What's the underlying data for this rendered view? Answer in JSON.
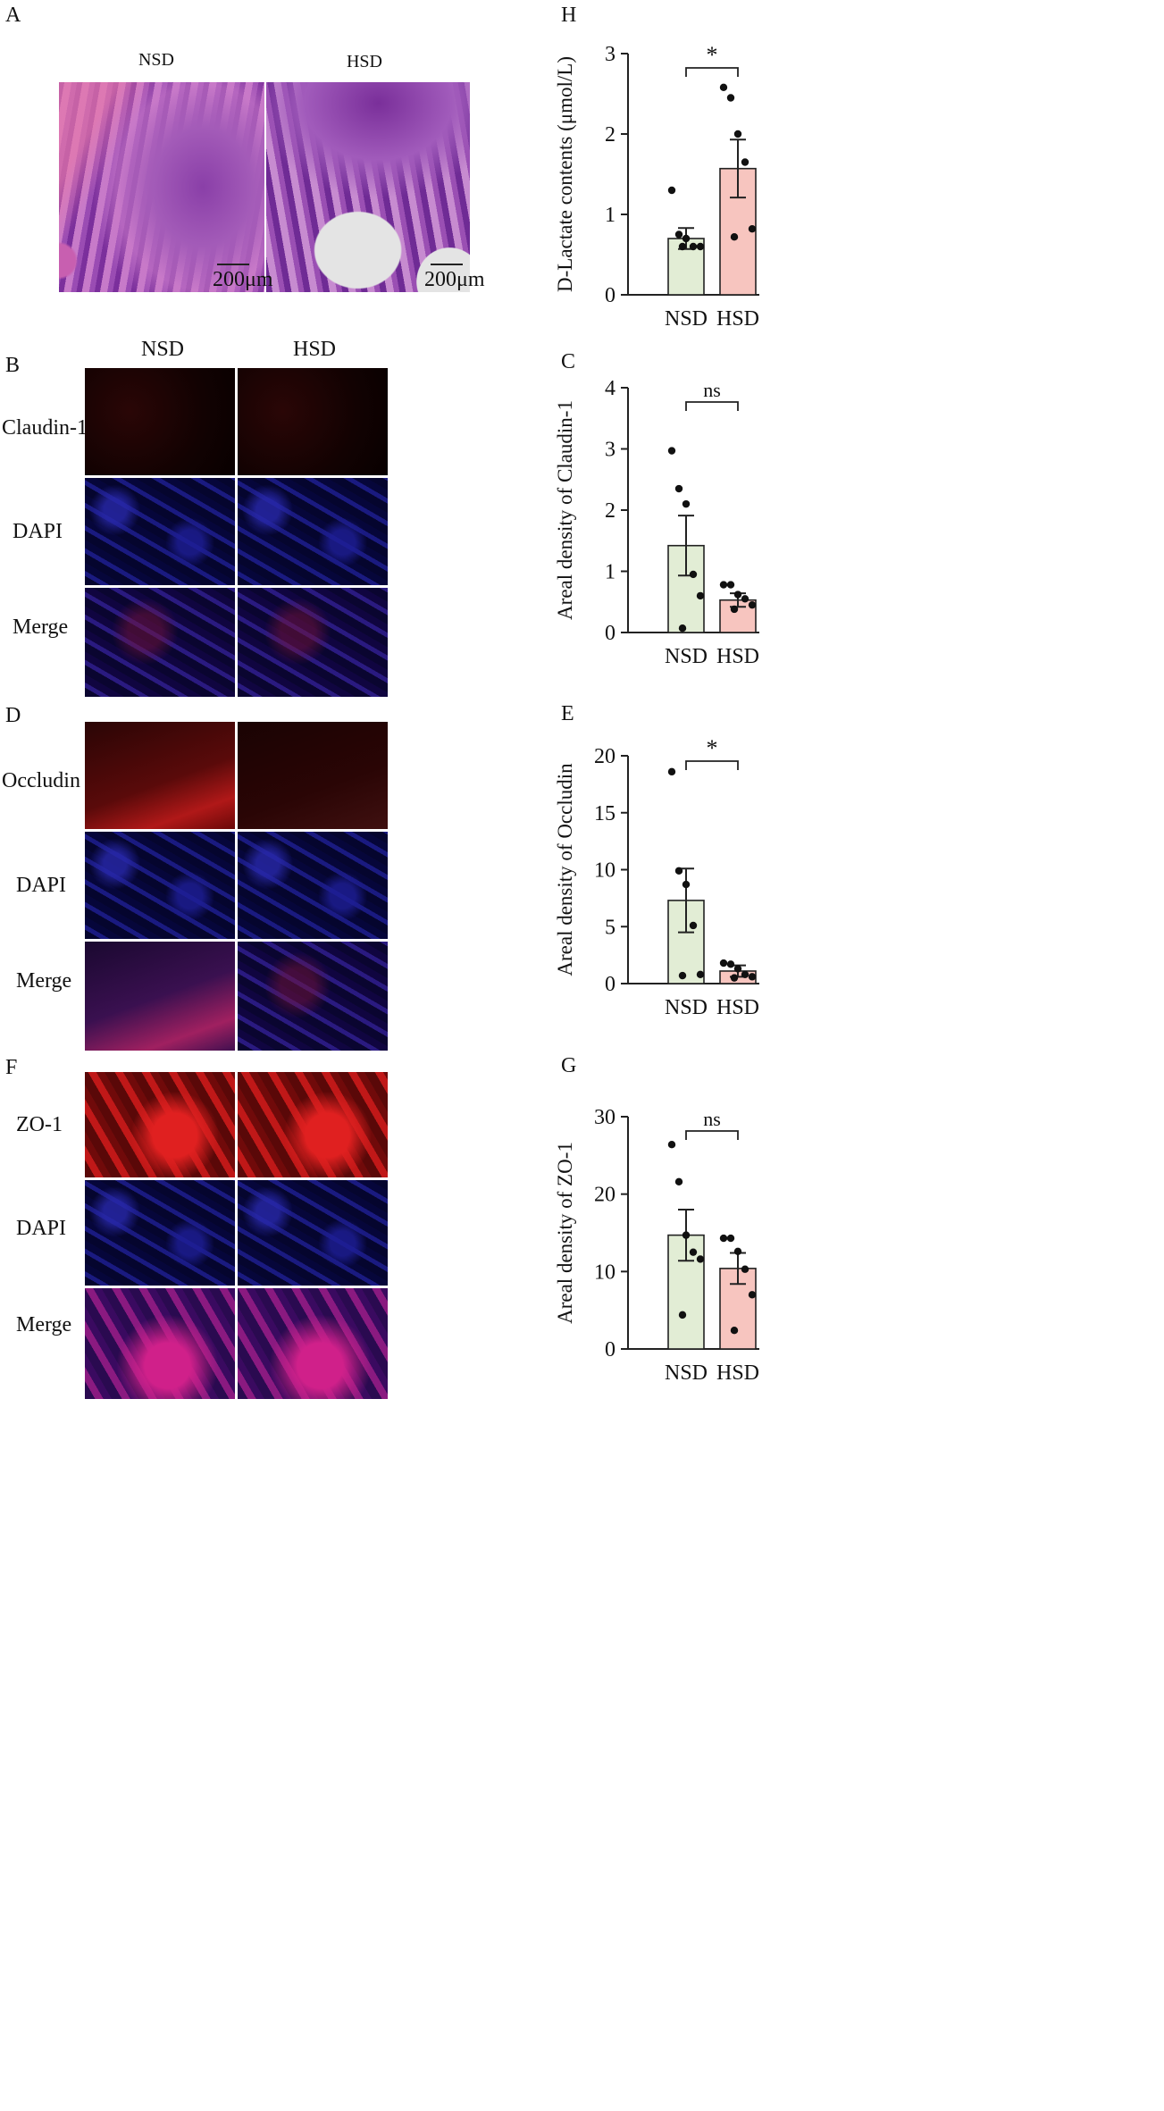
{
  "panel_labels": {
    "A": "A",
    "B": "B",
    "C": "C",
    "D": "D",
    "E": "E",
    "F": "F",
    "G": "G",
    "H": "H"
  },
  "group_labels": {
    "nsd": "NSD",
    "hsd": "HSD"
  },
  "he_panel": {
    "scalebar_text": "200μm"
  },
  "if_rows": {
    "claudin": [
      "Claudin-1",
      "DAPI",
      "Merge"
    ],
    "occludin": [
      "Occludin",
      "DAPI",
      "Merge"
    ],
    "zo1": [
      "ZO-1",
      "DAPI",
      "Merge"
    ]
  },
  "colors": {
    "nsd_fill": "#e2edd5",
    "hsd_fill": "#f7c5bf",
    "bar_stroke": "#222222"
  },
  "chart_data": [
    {
      "id": "H",
      "type": "bar",
      "categories": [
        "NSD",
        "HSD"
      ],
      "values": [
        0.7,
        1.57
      ],
      "errors": [
        0.13,
        0.36
      ],
      "points": [
        [
          1.3,
          0.75,
          0.7,
          0.6,
          0.6,
          0.6
        ],
        [
          2.58,
          2.45,
          2.0,
          1.65,
          0.82,
          0.72
        ]
      ],
      "ylabel": "D-Lactate contents (μmol/L)",
      "ylim": [
        0,
        3
      ],
      "yticks": [
        0,
        1,
        2,
        3
      ],
      "significance": "*"
    },
    {
      "id": "C",
      "type": "bar",
      "categories": [
        "NSD",
        "HSD"
      ],
      "values": [
        1.42,
        0.53
      ],
      "errors": [
        0.49,
        0.11
      ],
      "points": [
        [
          2.97,
          2.35,
          2.1,
          0.95,
          0.6,
          0.07
        ],
        [
          0.78,
          0.78,
          0.62,
          0.55,
          0.45,
          0.38
        ]
      ],
      "ylabel": "Areal density of Claudin-1",
      "ylim": [
        0,
        4
      ],
      "yticks": [
        0,
        1,
        2,
        3,
        4
      ],
      "significance": "ns"
    },
    {
      "id": "E",
      "type": "bar",
      "categories": [
        "NSD",
        "HSD"
      ],
      "values": [
        7.3,
        1.1
      ],
      "errors": [
        2.8,
        0.5
      ],
      "points": [
        [
          18.6,
          9.9,
          8.7,
          5.1,
          0.8,
          0.7
        ],
        [
          1.8,
          1.7,
          1.3,
          0.8,
          0.6,
          0.5
        ]
      ],
      "ylabel": "Areal density of Occludin",
      "ylim": [
        0,
        20
      ],
      "yticks": [
        0,
        5,
        10,
        15,
        20
      ],
      "significance": "*"
    },
    {
      "id": "G",
      "type": "bar",
      "categories": [
        "NSD",
        "HSD"
      ],
      "values": [
        14.7,
        10.4
      ],
      "errors": [
        3.3,
        2.0
      ],
      "points": [
        [
          26.4,
          21.6,
          14.7,
          12.5,
          11.6,
          4.4
        ],
        [
          14.3,
          14.3,
          12.6,
          10.3,
          7.0,
          2.4
        ]
      ],
      "ylabel": "Areal density of ZO-1",
      "ylim": [
        0,
        30
      ],
      "yticks": [
        0,
        10,
        20,
        30
      ],
      "significance": "ns"
    }
  ]
}
